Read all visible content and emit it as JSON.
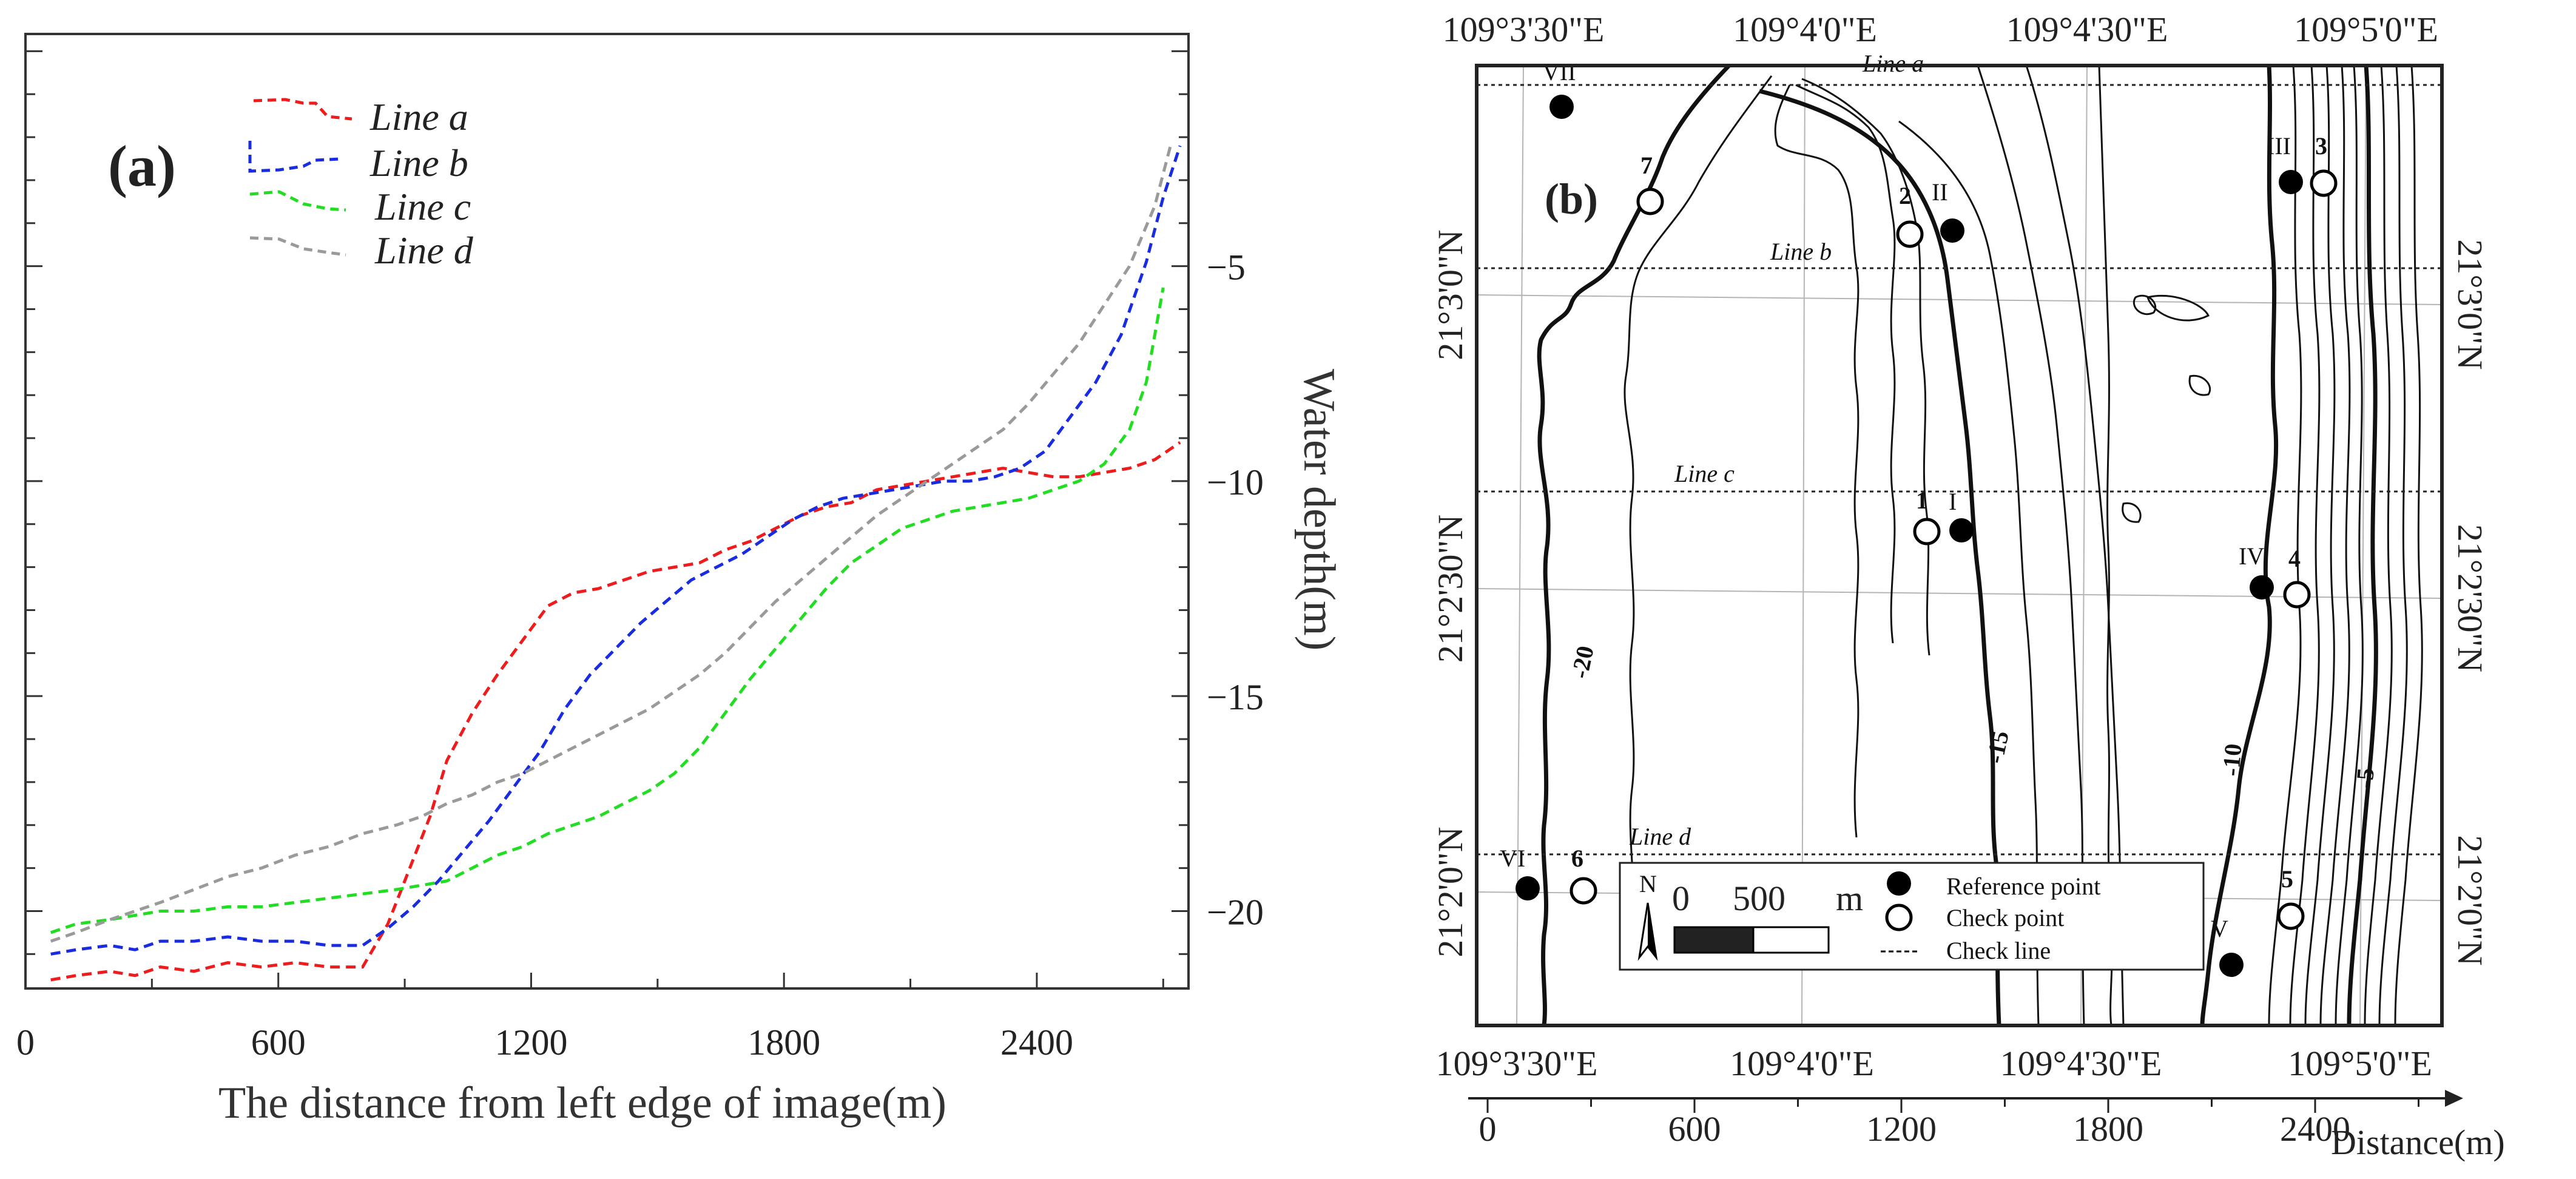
{
  "chart_data": [
    {
      "id": "a",
      "type": "line",
      "panel_label": "(a)",
      "title": "",
      "xlabel": "The distance from left edge of image(m)",
      "ylabel": "Water depth(m)",
      "xlim": [
        0,
        2760
      ],
      "ylim": [
        -21.8,
        0.4
      ],
      "x_ticks": [
        0,
        600,
        1200,
        1800,
        2400
      ],
      "x_tick_labels": [
        "0",
        "600",
        "1200",
        "1800",
        "2400"
      ],
      "y_ticks": [
        -5,
        -10,
        -15,
        -20
      ],
      "y_tick_labels": [
        "−5",
        "−10",
        "−15",
        "−20"
      ],
      "legend_position": "top-left",
      "series": [
        {
          "name": "Line a",
          "color": "#ee1c1c",
          "x": [
            60,
            120,
            200,
            260,
            320,
            400,
            480,
            560,
            640,
            720,
            800,
            860,
            900,
            960,
            1000,
            1060,
            1120,
            1180,
            1240,
            1300,
            1360,
            1420,
            1480,
            1540,
            1600,
            1660,
            1720,
            1780,
            1840,
            1900,
            1960,
            2020,
            2080,
            2140,
            2200,
            2260,
            2320,
            2380,
            2440,
            2500,
            2560,
            2620,
            2680,
            2740
          ],
          "y": [
            -21.6,
            -21.5,
            -21.4,
            -21.5,
            -21.3,
            -21.4,
            -21.2,
            -21.3,
            -21.2,
            -21.3,
            -21.3,
            -20.3,
            -19.3,
            -17.8,
            -16.5,
            -15.4,
            -14.5,
            -13.7,
            -12.9,
            -12.6,
            -12.5,
            -12.3,
            -12.1,
            -12.0,
            -11.9,
            -11.6,
            -11.4,
            -11.1,
            -10.8,
            -10.6,
            -10.5,
            -10.2,
            -10.1,
            -10.0,
            -9.9,
            -9.8,
            -9.7,
            -9.8,
            -9.9,
            -9.9,
            -9.8,
            -9.7,
            -9.5,
            -9.1
          ]
        },
        {
          "name": "Line b",
          "color": "#1a2ce0",
          "x": [
            60,
            120,
            200,
            260,
            320,
            400,
            480,
            560,
            640,
            720,
            800,
            860,
            920,
            980,
            1040,
            1100,
            1160,
            1220,
            1280,
            1340,
            1400,
            1460,
            1520,
            1580,
            1640,
            1700,
            1760,
            1820,
            1880,
            1940,
            2000,
            2060,
            2120,
            2180,
            2240,
            2300,
            2360,
            2420,
            2480,
            2540,
            2600,
            2660,
            2700,
            2740
          ],
          "y": [
            -21.0,
            -20.9,
            -20.8,
            -20.9,
            -20.7,
            -20.7,
            -20.6,
            -20.7,
            -20.7,
            -20.8,
            -20.8,
            -20.4,
            -19.9,
            -19.3,
            -18.6,
            -17.9,
            -17.1,
            -16.3,
            -15.3,
            -14.5,
            -13.9,
            -13.3,
            -12.8,
            -12.3,
            -12.0,
            -11.7,
            -11.3,
            -10.9,
            -10.6,
            -10.4,
            -10.3,
            -10.2,
            -10.1,
            -10.0,
            -10.0,
            -9.9,
            -9.7,
            -9.3,
            -8.5,
            -7.7,
            -6.6,
            -4.9,
            -3.4,
            -2.2
          ]
        },
        {
          "name": "Line c",
          "color": "#22dd22",
          "x": [
            60,
            120,
            200,
            260,
            320,
            400,
            480,
            560,
            640,
            720,
            800,
            880,
            940,
            1000,
            1060,
            1120,
            1180,
            1240,
            1300,
            1360,
            1420,
            1480,
            1540,
            1600,
            1660,
            1720,
            1780,
            1840,
            1900,
            1960,
            2020,
            2080,
            2140,
            2200,
            2260,
            2320,
            2380,
            2440,
            2500,
            2560,
            2620,
            2660,
            2700
          ],
          "y": [
            -20.5,
            -20.3,
            -20.2,
            -20.1,
            -20.0,
            -20.0,
            -19.9,
            -19.9,
            -19.8,
            -19.7,
            -19.6,
            -19.5,
            -19.4,
            -19.3,
            -19.0,
            -18.7,
            -18.5,
            -18.2,
            -18.0,
            -17.8,
            -17.5,
            -17.2,
            -16.8,
            -16.2,
            -15.4,
            -14.6,
            -13.9,
            -13.2,
            -12.5,
            -11.9,
            -11.5,
            -11.1,
            -10.9,
            -10.7,
            -10.6,
            -10.5,
            -10.4,
            -10.2,
            -10.0,
            -9.6,
            -8.8,
            -7.7,
            -5.5
          ]
        },
        {
          "name": "Line d",
          "color": "#9a9a9a",
          "x": [
            60,
            120,
            200,
            260,
            320,
            400,
            480,
            560,
            640,
            720,
            800,
            880,
            940,
            1000,
            1060,
            1120,
            1180,
            1240,
            1300,
            1360,
            1420,
            1480,
            1540,
            1600,
            1660,
            1720,
            1780,
            1840,
            1900,
            1960,
            2020,
            2080,
            2140,
            2200,
            2260,
            2320,
            2380,
            2440,
            2500,
            2560,
            2620,
            2680,
            2720
          ],
          "y": [
            -20.7,
            -20.5,
            -20.2,
            -20.0,
            -19.8,
            -19.5,
            -19.2,
            -19.0,
            -18.7,
            -18.5,
            -18.2,
            -18.0,
            -17.8,
            -17.5,
            -17.3,
            -17.0,
            -16.8,
            -16.5,
            -16.2,
            -15.9,
            -15.6,
            -15.3,
            -14.9,
            -14.5,
            -14.0,
            -13.4,
            -12.8,
            -12.3,
            -11.8,
            -11.3,
            -10.8,
            -10.4,
            -10.0,
            -9.6,
            -9.2,
            -8.8,
            -8.2,
            -7.5,
            -6.8,
            -5.9,
            -5.0,
            -3.6,
            -2.1
          ]
        }
      ]
    },
    {
      "id": "b",
      "type": "map",
      "panel_label": "(b)",
      "lon_tick_labels": [
        "109°3'30\"E",
        "109°4'0\"E",
        "109°4'30\"E",
        "109°5'0\"E"
      ],
      "lat_tick_labels": [
        "21°3'0\"N",
        "21°2'30\"N",
        "21°2'0\"N"
      ],
      "check_lines": [
        "Line a",
        "Line b",
        "Line c",
        "Line d"
      ],
      "contour_labels": [
        "-20",
        "-15",
        "-10",
        "-5"
      ],
      "reference_points": [
        "I",
        "II",
        "III",
        "IV",
        "V",
        "VI",
        "VII"
      ],
      "check_points": [
        "1",
        "2",
        "3",
        "4",
        "5",
        "6",
        "7"
      ],
      "distance_axis": {
        "label": "Distance(m)",
        "ticks": [
          0,
          600,
          1200,
          1800,
          2400
        ],
        "tick_labels": [
          "0",
          "600",
          "1200",
          "1800",
          "2400"
        ]
      },
      "legend": {
        "north": "N",
        "scale_start": "0",
        "scale_end": "500",
        "scale_unit": "m",
        "reference_point": "Reference point",
        "check_point": "Check point",
        "check_line": "Check  line"
      }
    }
  ]
}
